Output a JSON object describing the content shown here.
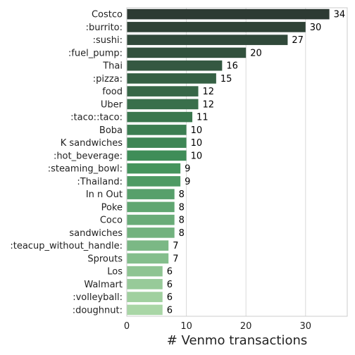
{
  "chart_data": {
    "type": "bar",
    "orientation": "horizontal",
    "title": "",
    "xlabel": "# Venmo transactions",
    "ylabel": "",
    "xlim": [
      0,
      37
    ],
    "xticks": [
      0,
      10,
      20,
      30
    ],
    "grid": "vertical",
    "data_labels": true,
    "palette": "greens_dark",
    "color_start": "#2d3a33",
    "color_end": "#a9d6a6",
    "categories": [
      "Costco",
      ":burrito:",
      ":sushi:",
      ":fuel_pump:",
      "Thai",
      ":pizza:",
      "food",
      "Uber",
      ":taco::taco:",
      "Boba",
      "K sandwiches",
      ":hot_beverage:",
      ":steaming_bowl:",
      ":Thailand:",
      "In n Out",
      "Poke",
      "Coco",
      "sandwiches",
      ":teacup_without_handle:",
      "Sprouts",
      "Los",
      "Walmart",
      ":volleyball:",
      ":doughnut:"
    ],
    "values": [
      34,
      30,
      27,
      20,
      16,
      15,
      12,
      12,
      11,
      10,
      10,
      10,
      9,
      9,
      8,
      8,
      8,
      8,
      7,
      7,
      6,
      6,
      6,
      6
    ]
  }
}
